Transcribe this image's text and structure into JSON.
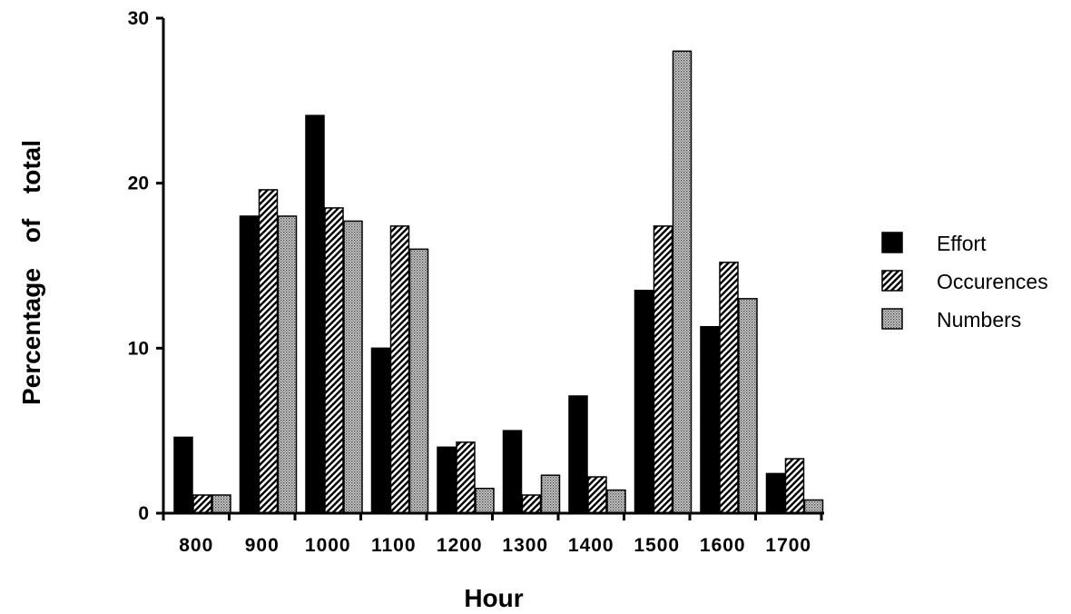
{
  "chart_data": {
    "type": "bar",
    "title": "",
    "xlabel": "Hour",
    "ylabel": "Percentage of total",
    "categories": [
      "800",
      "900",
      "1000",
      "1100",
      "1200",
      "1300",
      "1400",
      "1500",
      "1600",
      "1700"
    ],
    "series": [
      {
        "name": "Effort",
        "values": [
          4.6,
          18.0,
          24.1,
          10.0,
          4.0,
          5.0,
          7.1,
          13.5,
          11.3,
          2.4
        ],
        "color": "#000000",
        "pattern": "solid"
      },
      {
        "name": "Occurences",
        "values": [
          1.1,
          19.6,
          18.5,
          17.4,
          4.3,
          1.1,
          2.2,
          17.4,
          15.2,
          3.3
        ],
        "color": "#000000",
        "pattern": "hatch"
      },
      {
        "name": "Numbers",
        "values": [
          1.1,
          18.0,
          17.7,
          16.0,
          1.5,
          2.3,
          1.4,
          28.0,
          13.0,
          0.8
        ],
        "color": "#888888",
        "pattern": "dots"
      }
    ],
    "yticks": [
      "0",
      "10",
      "20",
      "30"
    ],
    "ylim": [
      0,
      30
    ],
    "grid": false,
    "legend": "right"
  }
}
